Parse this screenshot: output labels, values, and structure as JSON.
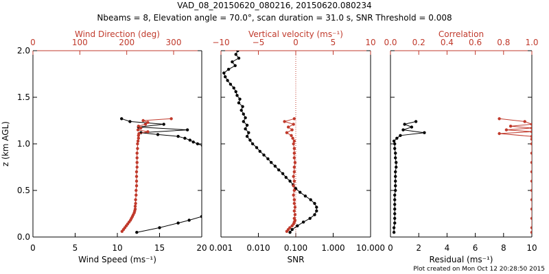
{
  "title_line1": "VAD_08_20150620_080216, 20150620.080234",
  "title_line2": "Nbeams = 8, Elevation angle = 70.0°, scan duration = 31.0 s, SNR Threshold = 0.008",
  "credit": "Plot created on Mon Oct 12 20:28:50 2015",
  "colors": {
    "black": "#000000",
    "red": "#c0392b"
  },
  "ylabel": "z (km AGL)",
  "chart_data": [
    {
      "type": "line",
      "panel": "left",
      "ylabel": "z (km AGL)",
      "ylim": [
        0,
        2
      ],
      "yticks": [
        "0.0",
        "0.5",
        "1.0",
        "1.5",
        "2.0"
      ],
      "bottom_axis": {
        "label": "Wind Speed (ms⁻¹)",
        "lim": [
          0,
          20
        ],
        "ticks": [
          "0",
          "5",
          "10",
          "15",
          "20"
        ],
        "color": "#000000"
      },
      "top_axis": {
        "label": "Wind Direction (deg)",
        "lim": [
          0,
          360
        ],
        "ticks": [
          "0",
          "100",
          "200",
          "300"
        ],
        "color": "#c0392b"
      },
      "series": [
        {
          "axis": "bottom",
          "color": "#000000",
          "z": [
            0.05,
            0.1,
            0.15,
            0.18,
            0.22,
            0.26,
            0.3,
            0.95,
            0.98,
            1.0,
            1.02,
            1.04,
            1.06,
            1.08,
            1.1,
            1.12,
            1.15,
            1.18,
            1.21,
            1.24,
            1.27
          ],
          "values": [
            12.3,
            15.0,
            17.2,
            18.5,
            20.0,
            20.5,
            20.8,
            20.4,
            20.1,
            19.5,
            19.0,
            18.6,
            18.0,
            17.2,
            14.8,
            12.8,
            18.3,
            12.5,
            15.5,
            11.5,
            10.5
          ]
        },
        {
          "axis": "top",
          "color": "#c0392b",
          "z": [
            0.06,
            0.08,
            0.1,
            0.12,
            0.14,
            0.16,
            0.18,
            0.2,
            0.22,
            0.24,
            0.26,
            0.28,
            0.3,
            0.33,
            0.36,
            0.4,
            0.45,
            0.5,
            0.55,
            0.6,
            0.65,
            0.7,
            0.75,
            0.8,
            0.85,
            0.9,
            0.95,
            1.0,
            1.03,
            1.06,
            1.09,
            1.11,
            1.13,
            1.15,
            1.17,
            1.19,
            1.21,
            1.23,
            1.25,
            1.27
          ],
          "values": [
            190,
            193,
            196,
            199,
            202,
            205,
            208,
            210,
            212,
            214,
            216,
            217,
            218,
            218,
            219,
            219,
            220,
            220,
            221,
            221,
            221,
            221,
            222,
            222,
            222,
            222,
            223,
            223,
            224,
            225,
            225,
            226,
            245,
            224,
            230,
            225,
            240,
            245,
            235,
            295
          ]
        }
      ]
    },
    {
      "type": "line",
      "panel": "middle",
      "ylim": [
        0,
        2
      ],
      "bottom_axis": {
        "label": "SNR",
        "scale": "log",
        "lim": [
          0.001,
          10
        ],
        "ticks": [
          "0.001",
          "0.010",
          "0.100",
          "1.000",
          "10.000"
        ],
        "color": "#000000"
      },
      "top_axis": {
        "label": "Vertical velocity (ms⁻¹)",
        "lim": [
          -10,
          10
        ],
        "ticks": [
          "−10",
          "−5",
          "0",
          "5",
          "10"
        ],
        "color": "#c0392b"
      },
      "reference_line": {
        "axis": "top",
        "value": 0,
        "style": "dotted",
        "color": "#c0392b"
      },
      "series": [
        {
          "axis": "bottom",
          "color": "#000000",
          "z": [
            0.05,
            0.08,
            0.12,
            0.16,
            0.2,
            0.24,
            0.28,
            0.32,
            0.36,
            0.4,
            0.44,
            0.48,
            0.52,
            0.56,
            0.6,
            0.64,
            0.68,
            0.72,
            0.76,
            0.8,
            0.84,
            0.88,
            0.92,
            0.96,
            1.0,
            1.04,
            1.08,
            1.12,
            1.16,
            1.2,
            1.24,
            1.28,
            1.32,
            1.36,
            1.4,
            1.44,
            1.48,
            1.52,
            1.56,
            1.6,
            1.64,
            1.68,
            1.72,
            1.76,
            1.8,
            1.84,
            1.88,
            1.92,
            1.96,
            2.0
          ],
          "values": [
            0.07,
            0.08,
            0.11,
            0.16,
            0.24,
            0.32,
            0.36,
            0.36,
            0.32,
            0.25,
            0.18,
            0.13,
            0.1,
            0.085,
            0.07,
            0.055,
            0.045,
            0.035,
            0.028,
            0.022,
            0.018,
            0.014,
            0.011,
            0.009,
            0.007,
            0.006,
            0.005,
            0.0055,
            0.0045,
            0.005,
            0.004,
            0.0045,
            0.004,
            0.0035,
            0.0038,
            0.003,
            0.0032,
            0.0027,
            0.0025,
            0.0022,
            0.0018,
            0.0015,
            0.0013,
            0.0012,
            0.0016,
            0.0024,
            0.002,
            0.003,
            0.0025,
            0.0028
          ]
        },
        {
          "axis": "top",
          "color": "#c0392b",
          "z": [
            0.06,
            0.08,
            0.1,
            0.12,
            0.14,
            0.16,
            0.18,
            0.2,
            0.24,
            0.28,
            0.32,
            0.36,
            0.4,
            0.45,
            0.5,
            0.55,
            0.6,
            0.65,
            0.7,
            0.75,
            0.8,
            0.85,
            0.9,
            0.95,
            1.0,
            1.03,
            1.06,
            1.09,
            1.12,
            1.15,
            1.18,
            1.21,
            1.24,
            1.27
          ],
          "values": [
            -1.2,
            -1.0,
            -0.8,
            -0.5,
            -0.3,
            -0.2,
            -0.1,
            -0.2,
            -0.1,
            -0.2,
            -0.1,
            -0.2,
            -0.2,
            -0.3,
            -0.2,
            -0.3,
            -0.2,
            -0.3,
            -0.2,
            -0.2,
            -0.1,
            -0.2,
            -0.2,
            -0.2,
            -0.3,
            -0.2,
            -0.4,
            -0.6,
            -1.2,
            -0.5,
            -1.0,
            -0.3,
            -1.5,
            -0.2
          ]
        }
      ]
    },
    {
      "type": "line",
      "panel": "right",
      "ylim": [
        0,
        2
      ],
      "bottom_axis": {
        "label": "Residual (ms⁻¹)",
        "lim": [
          0,
          10
        ],
        "ticks": [
          "0",
          "2",
          "4",
          "6",
          "8",
          "10"
        ],
        "color": "#000000"
      },
      "top_axis": {
        "label": "Correlation",
        "lim": [
          0,
          1
        ],
        "ticks": [
          "0.0",
          "0.2",
          "0.4",
          "0.6",
          "0.8",
          "1.0"
        ],
        "color": "#c0392b"
      },
      "series": [
        {
          "axis": "bottom",
          "color": "#000000",
          "z": [
            0.05,
            0.1,
            0.15,
            0.2,
            0.25,
            0.3,
            0.35,
            0.4,
            0.45,
            0.5,
            0.55,
            0.6,
            0.65,
            0.7,
            0.75,
            0.8,
            0.85,
            0.9,
            0.95,
            1.0,
            1.03,
            1.06,
            1.09,
            1.12,
            1.15,
            1.18,
            1.21,
            1.24
          ],
          "values": [
            0.25,
            0.25,
            0.3,
            0.3,
            0.3,
            0.3,
            0.3,
            0.3,
            0.3,
            0.35,
            0.35,
            0.35,
            0.35,
            0.35,
            0.4,
            0.4,
            0.35,
            0.35,
            0.3,
            0.3,
            0.25,
            0.45,
            0.7,
            2.4,
            0.9,
            1.5,
            1.0,
            1.8
          ]
        },
        {
          "axis": "top",
          "color": "#c0392b",
          "z": [
            0.05,
            0.1,
            0.2,
            0.3,
            0.4,
            0.5,
            0.6,
            0.7,
            0.8,
            0.9,
            1.0,
            1.05,
            1.08,
            1.11,
            1.13,
            1.15,
            1.17,
            1.19,
            1.21,
            1.24,
            1.27
          ],
          "values": [
            1.0,
            1.0,
            1.0,
            1.0,
            1.0,
            1.0,
            1.0,
            1.0,
            1.0,
            1.0,
            1.0,
            1.0,
            1.0,
            0.77,
            1.0,
            0.82,
            1.0,
            0.85,
            1.0,
            0.95,
            0.77
          ]
        }
      ]
    }
  ]
}
